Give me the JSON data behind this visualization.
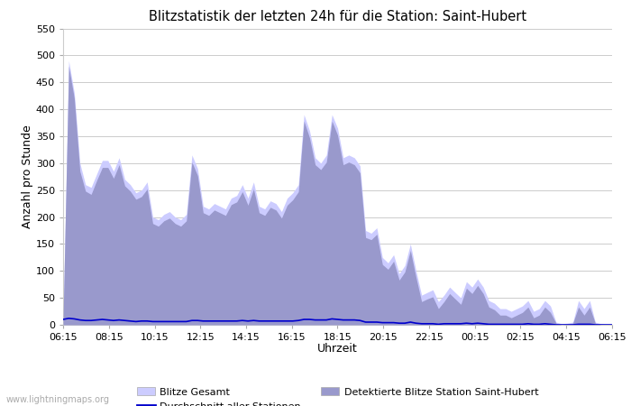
{
  "title": "Blitzstatistik der letzten 24h für die Station: Saint-Hubert",
  "xlabel": "Uhrzeit",
  "ylabel": "Anzahl pro Stunde",
  "watermark": "www.lightningmaps.org",
  "ylim": [
    0,
    550
  ],
  "yticks": [
    0,
    50,
    100,
    150,
    200,
    250,
    300,
    350,
    400,
    450,
    500,
    550
  ],
  "xtick_labels": [
    "06:15",
    "08:15",
    "10:15",
    "12:15",
    "14:15",
    "16:15",
    "18:15",
    "20:15",
    "22:15",
    "00:15",
    "02:15",
    "04:15",
    "06:15"
  ],
  "color_gesamt": "#ccccff",
  "color_detektiert": "#9999cc",
  "color_avg": "#0000cc",
  "background_color": "#ffffff",
  "grid_color": "#cccccc",
  "blitze_gesamt": [
    10,
    490,
    430,
    300,
    260,
    255,
    280,
    305,
    305,
    285,
    310,
    270,
    260,
    245,
    250,
    265,
    200,
    195,
    205,
    210,
    200,
    195,
    205,
    315,
    290,
    220,
    215,
    225,
    220,
    215,
    235,
    240,
    260,
    235,
    265,
    220,
    215,
    230,
    225,
    210,
    235,
    245,
    260,
    390,
    360,
    310,
    300,
    315,
    390,
    365,
    310,
    315,
    310,
    295,
    175,
    170,
    180,
    125,
    115,
    130,
    95,
    110,
    150,
    100,
    55,
    60,
    65,
    43,
    55,
    70,
    60,
    50,
    80,
    70,
    85,
    70,
    45,
    40,
    30,
    30,
    25,
    30,
    35,
    45,
    25,
    30,
    45,
    35,
    5,
    2,
    3,
    5,
    45,
    30,
    45,
    5,
    2,
    0,
    0
  ],
  "detektierte_blitze": [
    8,
    480,
    420,
    285,
    248,
    242,
    268,
    292,
    292,
    272,
    297,
    258,
    248,
    233,
    238,
    252,
    188,
    183,
    193,
    198,
    188,
    183,
    193,
    302,
    277,
    208,
    203,
    213,
    208,
    203,
    223,
    228,
    247,
    222,
    252,
    208,
    203,
    218,
    213,
    198,
    222,
    232,
    247,
    378,
    347,
    297,
    288,
    302,
    378,
    352,
    297,
    302,
    297,
    282,
    162,
    158,
    168,
    112,
    103,
    118,
    83,
    98,
    138,
    88,
    43,
    48,
    52,
    30,
    43,
    58,
    48,
    38,
    68,
    58,
    73,
    58,
    33,
    28,
    18,
    18,
    13,
    18,
    23,
    33,
    13,
    18,
    33,
    23,
    3,
    0,
    1,
    3,
    33,
    18,
    33,
    3,
    0,
    0,
    0
  ],
  "avg_stationen": [
    10,
    12,
    11,
    9,
    8,
    8,
    9,
    10,
    9,
    8,
    9,
    8,
    7,
    6,
    7,
    7,
    6,
    6,
    6,
    6,
    6,
    6,
    6,
    8,
    8,
    7,
    7,
    7,
    7,
    7,
    7,
    7,
    8,
    7,
    8,
    7,
    7,
    7,
    7,
    7,
    7,
    7,
    8,
    10,
    10,
    9,
    9,
    9,
    11,
    10,
    9,
    9,
    9,
    8,
    5,
    5,
    5,
    4,
    4,
    4,
    3,
    3,
    5,
    3,
    2,
    2,
    2,
    1,
    2,
    2,
    2,
    2,
    3,
    2,
    3,
    2,
    1,
    1,
    1,
    1,
    1,
    1,
    1,
    2,
    1,
    1,
    2,
    1,
    0,
    0,
    0,
    0,
    1,
    1,
    1,
    0,
    0,
    0,
    0
  ]
}
